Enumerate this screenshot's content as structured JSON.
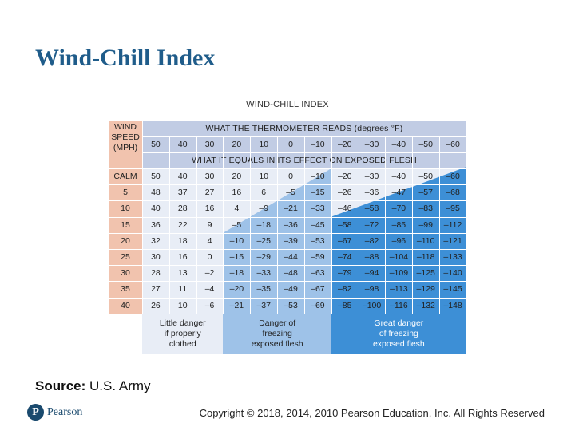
{
  "slide": {
    "title": "Wind-Chill Index",
    "source_label": "Source:",
    "source_value": "U.S. Army",
    "copyright": "Copyright © 2018, 2014, 2010 Pearson Education, Inc. All Rights Reserved",
    "logo_text": "Pearson",
    "logo_mark": "P"
  },
  "table": {
    "title": "WIND-CHILL INDEX",
    "wind_label": [
      "WIND",
      "SPEED",
      "(MPH)"
    ],
    "thermometer_header": "WHAT THE THERMOMETER READS (degrees °F)",
    "equals_header": "WHAT IT EQUALS IN ITS EFFECT ON EXPOSED FLESH",
    "temperatures": [
      "50",
      "40",
      "30",
      "20",
      "10",
      "0",
      "–10",
      "–20",
      "–30",
      "–40",
      "–50",
      "–60"
    ],
    "rows": [
      {
        "speed": "CALM",
        "values": [
          "50",
          "40",
          "30",
          "20",
          "10",
          "0",
          "–10",
          "–20",
          "–30",
          "–40",
          "–50",
          "–60"
        ]
      },
      {
        "speed": "5",
        "values": [
          "48",
          "37",
          "27",
          "16",
          "6",
          "–5",
          "–15",
          "–26",
          "–36",
          "–47",
          "–57",
          "–68"
        ]
      },
      {
        "speed": "10",
        "values": [
          "40",
          "28",
          "16",
          "4",
          "–9",
          "–21",
          "–33",
          "–46",
          "–58",
          "–70",
          "–83",
          "–95"
        ]
      },
      {
        "speed": "15",
        "values": [
          "36",
          "22",
          "9",
          "–5",
          "–18",
          "–36",
          "–45",
          "–58",
          "–72",
          "–85",
          "–99",
          "–112"
        ]
      },
      {
        "speed": "20",
        "values": [
          "32",
          "18",
          "4",
          "–10",
          "–25",
          "–39",
          "–53",
          "–67",
          "–82",
          "–96",
          "–110",
          "–121"
        ]
      },
      {
        "speed": "25",
        "values": [
          "30",
          "16",
          "0",
          "–15",
          "–29",
          "–44",
          "–59",
          "–74",
          "–88",
          "–104",
          "–118",
          "–133"
        ]
      },
      {
        "speed": "30",
        "values": [
          "28",
          "13",
          "–2",
          "–18",
          "–33",
          "–48",
          "–63",
          "–79",
          "–94",
          "–109",
          "–125",
          "–140"
        ]
      },
      {
        "speed": "35",
        "values": [
          "27",
          "11",
          "–4",
          "–20",
          "–35",
          "–49",
          "–67",
          "–82",
          "–98",
          "–113",
          "–129",
          "–145"
        ]
      },
      {
        "speed": "40",
        "values": [
          "26",
          "10",
          "–6",
          "–21",
          "–37",
          "–53",
          "–69",
          "–85",
          "–100",
          "–116",
          "–132",
          "–148"
        ]
      }
    ],
    "legend": [
      {
        "lines": [
          "Little danger",
          "if properly",
          "clothed"
        ],
        "color": "#e8edf6",
        "text_color": "#222222"
      },
      {
        "lines": [
          "Danger of",
          "freezing",
          "exposed flesh"
        ],
        "color": "#9ec2e8",
        "text_color": "#222222"
      },
      {
        "lines": [
          "Great danger",
          "of freezing",
          "exposed flesh"
        ],
        "color": "#3d8fd6",
        "text_color": "#ffffff"
      }
    ],
    "colors": {
      "label_column": "#f1c3ae",
      "header": "#c1cce4",
      "safe": "#e8edf6",
      "danger": "#9ec2e8",
      "great_danger": "#3d8fd6"
    }
  }
}
